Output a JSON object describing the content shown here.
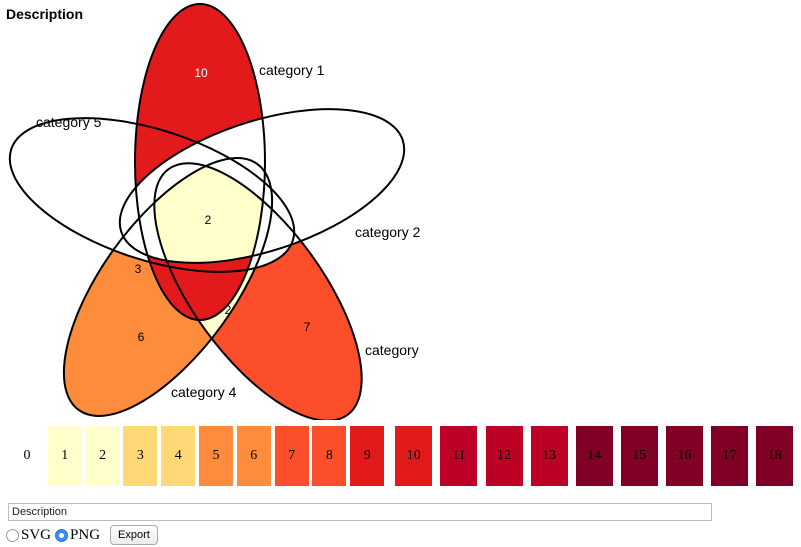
{
  "title": "Description",
  "chart_data": {
    "type": "venn",
    "sets": [
      "category 1",
      "category 2",
      "category",
      "category 4",
      "category 5"
    ],
    "regions": [
      {
        "sets": [
          "category 1"
        ],
        "value": 10,
        "color": "#e31a1c"
      },
      {
        "sets": [
          "category"
        ],
        "value": 7,
        "color": "#fc4e2a"
      },
      {
        "sets": [
          "category 4"
        ],
        "value": 6,
        "color": "#fd8d3c"
      },
      {
        "sets": [
          "category 1",
          "category 2",
          "category",
          "category 4",
          "category 5"
        ],
        "value": 2,
        "color": "#ffffcc"
      },
      {
        "sets": [
          "category 4",
          "category 5"
        ],
        "value": 3,
        "color": "#fed976"
      },
      {
        "sets": [
          "category",
          "category 4"
        ],
        "value": 2,
        "color": "#ffffcc"
      }
    ],
    "color_scale": [
      {
        "value": "0",
        "color": "#ffffff"
      },
      {
        "value": "1",
        "color": "#ffffcc"
      },
      {
        "value": "2",
        "color": "#ffffcc"
      },
      {
        "value": "3",
        "color": "#fed976"
      },
      {
        "value": "4",
        "color": "#fed976"
      },
      {
        "value": "5",
        "color": "#fd8d3c"
      },
      {
        "value": "6",
        "color": "#fd8d3c"
      },
      {
        "value": "7",
        "color": "#fc4e2a"
      },
      {
        "value": "8",
        "color": "#fc4e2a"
      },
      {
        "value": "9",
        "color": "#e31a1c"
      },
      {
        "value": "10",
        "color": "#e31a1c"
      },
      {
        "value": "11",
        "color": "#bd0026"
      },
      {
        "value": "12",
        "color": "#bd0026"
      },
      {
        "value": "13",
        "color": "#bd0026"
      },
      {
        "value": "14",
        "color": "#800026"
      },
      {
        "value": "15",
        "color": "#800026"
      },
      {
        "value": "16",
        "color": "#800026"
      },
      {
        "value": "17",
        "color": "#800026"
      },
      {
        "value": "18",
        "color": "#800026"
      }
    ]
  },
  "description_input": {
    "value": "Description"
  },
  "export": {
    "svg_label": "SVG",
    "png_label": "PNG",
    "selected": "PNG",
    "button_label": "Export"
  }
}
